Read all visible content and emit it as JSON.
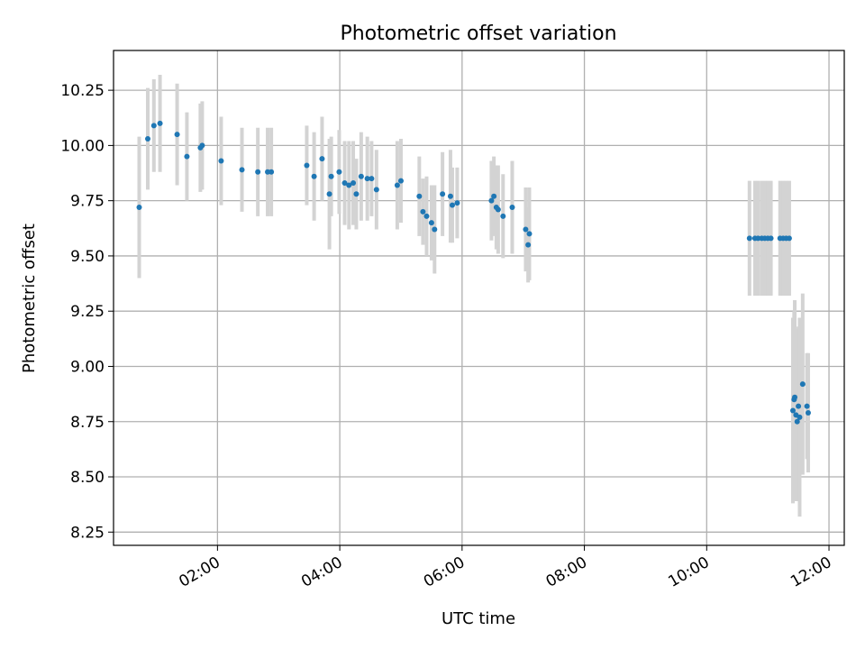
{
  "chart_data": {
    "type": "scatter",
    "title": "Photometric offset variation",
    "xlabel": "UTC time",
    "ylabel": "Photometric offset",
    "x_tick_labels": [
      "02:00",
      "04:00",
      "06:00",
      "08:00",
      "10:00",
      "12:00"
    ],
    "x_tick_values_hours": [
      2,
      4,
      6,
      8,
      10,
      12
    ],
    "y_tick_labels": [
      "8.25",
      "8.50",
      "8.75",
      "9.00",
      "9.25",
      "9.50",
      "9.75",
      "10.00",
      "10.25"
    ],
    "y_tick_values": [
      8.25,
      8.5,
      8.75,
      9.0,
      9.25,
      9.5,
      9.75,
      10.0,
      10.25
    ],
    "xlim_hours": [
      0.3,
      12.25
    ],
    "ylim": [
      8.19,
      10.43
    ],
    "grid": true,
    "colors": {
      "points": "#1f77b4",
      "errorbars": "#d3d3d3",
      "grid": "#b0b0b0"
    },
    "points": [
      {
        "t": 0.72,
        "y": 9.72,
        "err": 0.32
      },
      {
        "t": 0.86,
        "y": 10.03,
        "err": 0.23
      },
      {
        "t": 0.96,
        "y": 10.09,
        "err": 0.21
      },
      {
        "t": 1.06,
        "y": 10.1,
        "err": 0.22
      },
      {
        "t": 1.34,
        "y": 10.05,
        "err": 0.23
      },
      {
        "t": 1.5,
        "y": 9.95,
        "err": 0.2
      },
      {
        "t": 1.72,
        "y": 9.99,
        "err": 0.2
      },
      {
        "t": 1.75,
        "y": 10.0,
        "err": 0.2
      },
      {
        "t": 2.06,
        "y": 9.93,
        "err": 0.2
      },
      {
        "t": 2.4,
        "y": 9.89,
        "err": 0.19
      },
      {
        "t": 2.66,
        "y": 9.88,
        "err": 0.2
      },
      {
        "t": 2.82,
        "y": 9.88,
        "err": 0.2
      },
      {
        "t": 2.88,
        "y": 9.88,
        "err": 0.2
      },
      {
        "t": 3.46,
        "y": 9.91,
        "err": 0.18
      },
      {
        "t": 3.58,
        "y": 9.86,
        "err": 0.2
      },
      {
        "t": 3.71,
        "y": 9.94,
        "err": 0.19
      },
      {
        "t": 3.83,
        "y": 9.78,
        "err": 0.25
      },
      {
        "t": 3.86,
        "y": 9.86,
        "err": 0.18
      },
      {
        "t": 3.99,
        "y": 9.88,
        "err": 0.19
      },
      {
        "t": 4.08,
        "y": 9.83,
        "err": 0.19
      },
      {
        "t": 4.15,
        "y": 9.82,
        "err": 0.2
      },
      {
        "t": 4.22,
        "y": 9.83,
        "err": 0.19
      },
      {
        "t": 4.27,
        "y": 9.78,
        "err": 0.16
      },
      {
        "t": 4.35,
        "y": 9.86,
        "err": 0.2
      },
      {
        "t": 4.45,
        "y": 9.85,
        "err": 0.19
      },
      {
        "t": 4.52,
        "y": 9.85,
        "err": 0.17
      },
      {
        "t": 4.6,
        "y": 9.8,
        "err": 0.18
      },
      {
        "t": 4.94,
        "y": 9.82,
        "err": 0.2
      },
      {
        "t": 5.0,
        "y": 9.84,
        "err": 0.19
      },
      {
        "t": 5.3,
        "y": 9.77,
        "err": 0.18
      },
      {
        "t": 5.36,
        "y": 9.7,
        "err": 0.15
      },
      {
        "t": 5.42,
        "y": 9.68,
        "err": 0.18
      },
      {
        "t": 5.5,
        "y": 9.65,
        "err": 0.17
      },
      {
        "t": 5.55,
        "y": 9.62,
        "err": 0.2
      },
      {
        "t": 5.68,
        "y": 9.78,
        "err": 0.19
      },
      {
        "t": 5.81,
        "y": 9.77,
        "err": 0.21
      },
      {
        "t": 5.84,
        "y": 9.73,
        "err": 0.17
      },
      {
        "t": 5.92,
        "y": 9.74,
        "err": 0.16
      },
      {
        "t": 6.48,
        "y": 9.75,
        "err": 0.18
      },
      {
        "t": 6.52,
        "y": 9.77,
        "err": 0.18
      },
      {
        "t": 6.56,
        "y": 9.72,
        "err": 0.19
      },
      {
        "t": 6.59,
        "y": 9.71,
        "err": 0.2
      },
      {
        "t": 6.67,
        "y": 9.68,
        "err": 0.19
      },
      {
        "t": 6.82,
        "y": 9.72,
        "err": 0.21
      },
      {
        "t": 7.04,
        "y": 9.62,
        "err": 0.19
      },
      {
        "t": 7.08,
        "y": 9.55,
        "err": 0.17
      },
      {
        "t": 7.1,
        "y": 9.6,
        "err": 0.21
      },
      {
        "t": 10.7,
        "y": 9.58,
        "err": 0.26
      },
      {
        "t": 10.79,
        "y": 9.58,
        "err": 0.26
      },
      {
        "t": 10.84,
        "y": 9.58,
        "err": 0.26
      },
      {
        "t": 10.9,
        "y": 9.58,
        "err": 0.26
      },
      {
        "t": 10.95,
        "y": 9.58,
        "err": 0.26
      },
      {
        "t": 11.0,
        "y": 9.58,
        "err": 0.26
      },
      {
        "t": 11.05,
        "y": 9.58,
        "err": 0.26
      },
      {
        "t": 11.2,
        "y": 9.58,
        "err": 0.26
      },
      {
        "t": 11.25,
        "y": 9.58,
        "err": 0.26
      },
      {
        "t": 11.3,
        "y": 9.58,
        "err": 0.26
      },
      {
        "t": 11.35,
        "y": 9.58,
        "err": 0.26
      },
      {
        "t": 11.41,
        "y": 8.8,
        "err": 0.42
      },
      {
        "t": 11.43,
        "y": 8.85,
        "err": 0.4
      },
      {
        "t": 11.44,
        "y": 8.86,
        "err": 0.44
      },
      {
        "t": 11.46,
        "y": 8.78,
        "err": 0.39
      },
      {
        "t": 11.48,
        "y": 8.75,
        "err": 0.36
      },
      {
        "t": 11.5,
        "y": 8.82,
        "err": 0.36
      },
      {
        "t": 11.52,
        "y": 8.77,
        "err": 0.45
      },
      {
        "t": 11.57,
        "y": 8.92,
        "err": 0.41
      },
      {
        "t": 11.64,
        "y": 8.82,
        "err": 0.24
      },
      {
        "t": 11.66,
        "y": 8.79,
        "err": 0.27
      }
    ]
  }
}
